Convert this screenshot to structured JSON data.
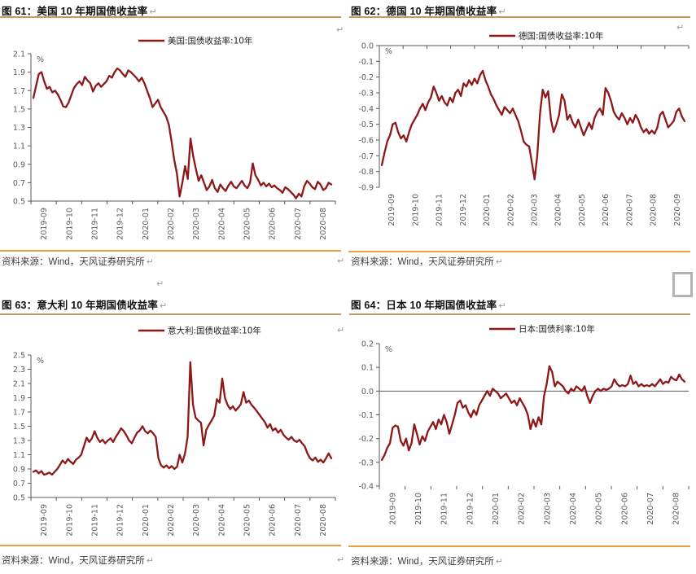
{
  "marks": {
    "pilcrow": "↵"
  },
  "colors": {
    "line": "#8e1717",
    "title_rule": "#c49a62",
    "source_rule": "#ec9f3f",
    "axis": "#595959",
    "legend_text": "#1f1f1f",
    "mark": "#9a9a9a"
  },
  "panels": [
    {
      "id": "us",
      "title": "图 61：美国 10 年期国债收益率",
      "legend": "美国:国债收益率:10年",
      "source": "资料来源：Wind，天风证券研究所"
    },
    {
      "id": "de",
      "title": "图 62：德国 10 年期国债收益率",
      "legend": "德国:国债收益率:10年",
      "source": "资料来源：Wind，天风证券研究所"
    },
    {
      "id": "it",
      "title": "图 63：意大利 10 年期国债收益率",
      "legend": "意大利:国债收益率:10年",
      "source": "资料来源：Wind，天风证券研究所"
    },
    {
      "id": "jp",
      "title": "图 64：日本 10 年期国债收益率",
      "legend": "日本:国债利率:10年",
      "source": "资料来源：Wind，天风证券研究所"
    }
  ],
  "chart_data": [
    {
      "type": "line",
      "title": "美国 10 年期国债收益率",
      "unit": "%",
      "ylim": [
        0.5,
        2.1
      ],
      "axis_style": "bottom",
      "legend_position": "top",
      "yticks": [
        {
          "v": 2.1,
          "t": "2.1"
        },
        {
          "v": 1.9,
          "t": "1.9"
        },
        {
          "v": 1.7,
          "t": "1.7"
        },
        {
          "v": 1.5,
          "t": "1.5"
        },
        {
          "v": 1.3,
          "t": "1.3"
        },
        {
          "v": 1.1,
          "t": "1.1"
        },
        {
          "v": 0.9,
          "t": "0.9"
        },
        {
          "v": 0.7,
          "t": "0.7"
        },
        {
          "v": 0.5,
          "t": "0.5"
        }
      ],
      "x_labels": [
        "2019-09",
        "2019-10",
        "2019-11",
        "2019-12",
        "2020-01",
        "2020-02",
        "2020-03",
        "2020-04",
        "2020-05",
        "2020-06",
        "2020-07",
        "2020-08"
      ],
      "series": [
        {
          "name": "美国:国债收益率:10年",
          "values": [
            1.62,
            1.75,
            1.88,
            1.9,
            1.8,
            1.72,
            1.74,
            1.68,
            1.7,
            1.66,
            1.6,
            1.53,
            1.52,
            1.57,
            1.65,
            1.73,
            1.77,
            1.8,
            1.76,
            1.85,
            1.81,
            1.78,
            1.69,
            1.75,
            1.78,
            1.74,
            1.77,
            1.8,
            1.86,
            1.84,
            1.9,
            1.94,
            1.92,
            1.88,
            1.85,
            1.92,
            1.9,
            1.87,
            1.84,
            1.8,
            1.84,
            1.78,
            1.7,
            1.62,
            1.52,
            1.56,
            1.6,
            1.52,
            1.47,
            1.42,
            1.33,
            1.15,
            0.95,
            0.8,
            0.55,
            0.7,
            0.88,
            0.74,
            1.18,
            0.99,
            0.85,
            0.72,
            0.78,
            0.7,
            0.62,
            0.66,
            0.73,
            0.64,
            0.6,
            0.68,
            0.64,
            0.61,
            0.67,
            0.71,
            0.66,
            0.64,
            0.68,
            0.72,
            0.67,
            0.64,
            0.7,
            0.91,
            0.78,
            0.73,
            0.67,
            0.7,
            0.66,
            0.69,
            0.65,
            0.67,
            0.64,
            0.62,
            0.59,
            0.65,
            0.63,
            0.6,
            0.57,
            0.53,
            0.58,
            0.55,
            0.66,
            0.72,
            0.69,
            0.65,
            0.63,
            0.71,
            0.68,
            0.62,
            0.64,
            0.7,
            0.68
          ]
        }
      ]
    },
    {
      "type": "line",
      "title": "德国 10 年期国债收益率",
      "unit": "%",
      "ylim": [
        -0.9,
        0.0
      ],
      "axis_style": "top",
      "legend_position": "top",
      "yticks": [
        {
          "v": 0.0,
          "t": "0.0"
        },
        {
          "v": -0.1,
          "t": "-0.1"
        },
        {
          "v": -0.2,
          "t": "-0.2"
        },
        {
          "v": -0.3,
          "t": "-0.3"
        },
        {
          "v": -0.4,
          "t": "-0.4"
        },
        {
          "v": -0.5,
          "t": "-0.5"
        },
        {
          "v": -0.6,
          "t": "-0.6"
        },
        {
          "v": -0.7,
          "t": "-0.7"
        },
        {
          "v": -0.8,
          "t": "-0.8"
        },
        {
          "v": -0.9,
          "t": "-0.9"
        }
      ],
      "x_labels": [
        "2019-09",
        "2019-10",
        "2019-11",
        "2019-12",
        "2020-01",
        "2020-02",
        "2020-03",
        "2020-04",
        "2020-05",
        "2020-06",
        "2020-07",
        "2020-08",
        "2020-09"
      ],
      "series": [
        {
          "name": "德国:国债收益率:10年",
          "values": [
            -0.76,
            -0.68,
            -0.61,
            -0.57,
            -0.5,
            -0.49,
            -0.55,
            -0.59,
            -0.57,
            -0.61,
            -0.55,
            -0.5,
            -0.47,
            -0.44,
            -0.4,
            -0.37,
            -0.41,
            -0.36,
            -0.33,
            -0.26,
            -0.3,
            -0.35,
            -0.32,
            -0.36,
            -0.38,
            -0.33,
            -0.36,
            -0.3,
            -0.28,
            -0.32,
            -0.24,
            -0.26,
            -0.22,
            -0.25,
            -0.21,
            -0.24,
            -0.19,
            -0.16,
            -0.22,
            -0.26,
            -0.31,
            -0.34,
            -0.38,
            -0.41,
            -0.44,
            -0.39,
            -0.41,
            -0.43,
            -0.4,
            -0.44,
            -0.48,
            -0.54,
            -0.61,
            -0.63,
            -0.64,
            -0.74,
            -0.85,
            -0.7,
            -0.43,
            -0.28,
            -0.33,
            -0.29,
            -0.47,
            -0.55,
            -0.5,
            -0.44,
            -0.31,
            -0.35,
            -0.47,
            -0.44,
            -0.49,
            -0.52,
            -0.47,
            -0.52,
            -0.57,
            -0.53,
            -0.49,
            -0.53,
            -0.46,
            -0.42,
            -0.4,
            -0.44,
            -0.27,
            -0.3,
            -0.35,
            -0.42,
            -0.45,
            -0.47,
            -0.43,
            -0.46,
            -0.5,
            -0.46,
            -0.49,
            -0.44,
            -0.47,
            -0.52,
            -0.55,
            -0.53,
            -0.56,
            -0.54,
            -0.56,
            -0.52,
            -0.44,
            -0.42,
            -0.47,
            -0.52,
            -0.5,
            -0.48,
            -0.42,
            -0.4,
            -0.45,
            -0.48
          ]
        }
      ]
    },
    {
      "type": "line",
      "title": "意大利 10 年期国债收益率",
      "unit": "%",
      "ylim": [
        0.5,
        2.5
      ],
      "axis_style": "bottom",
      "legend_position": "top",
      "yticks": [
        {
          "v": 2.5,
          "t": "2.5"
        },
        {
          "v": 2.3,
          "t": "2.3"
        },
        {
          "v": 2.1,
          "t": "2.1"
        },
        {
          "v": 1.9,
          "t": "1.9"
        },
        {
          "v": 1.7,
          "t": "1.7"
        },
        {
          "v": 1.5,
          "t": "1.5"
        },
        {
          "v": 1.3,
          "t": "1.3"
        },
        {
          "v": 1.1,
          "t": "1.1"
        },
        {
          "v": 0.9,
          "t": "0.9"
        },
        {
          "v": 0.7,
          "t": "0.7"
        },
        {
          "v": 0.5,
          "t": "0.5"
        }
      ],
      "x_labels": [
        "2019-09",
        "2019-10",
        "2019-11",
        "2019-12",
        "2020-01",
        "2020-02",
        "2020-03",
        "2020-04",
        "2020-05",
        "2020-06",
        "2020-07",
        "2020-08"
      ],
      "series": [
        {
          "name": "意大利:国债收益率:10年",
          "values": [
            0.86,
            0.88,
            0.84,
            0.87,
            0.82,
            0.83,
            0.85,
            0.82,
            0.86,
            0.9,
            0.96,
            1.02,
            0.98,
            1.04,
            1.0,
            0.97,
            1.03,
            1.06,
            1.1,
            1.22,
            1.34,
            1.28,
            1.33,
            1.43,
            1.34,
            1.28,
            1.31,
            1.26,
            1.3,
            1.33,
            1.28,
            1.35,
            1.41,
            1.47,
            1.43,
            1.37,
            1.3,
            1.26,
            1.34,
            1.41,
            1.44,
            1.5,
            1.43,
            1.4,
            1.44,
            1.4,
            1.35,
            1.05,
            0.95,
            0.92,
            0.95,
            0.91,
            0.94,
            0.9,
            0.93,
            1.1,
            0.99,
            1.12,
            1.35,
            2.4,
            1.8,
            1.62,
            1.58,
            1.55,
            1.23,
            1.45,
            1.52,
            1.58,
            1.65,
            1.88,
            1.83,
            2.17,
            1.9,
            1.8,
            1.74,
            1.78,
            1.72,
            1.76,
            1.81,
            1.98,
            1.83,
            1.86,
            1.8,
            1.76,
            1.71,
            1.66,
            1.61,
            1.56,
            1.48,
            1.53,
            1.44,
            1.47,
            1.41,
            1.45,
            1.38,
            1.34,
            1.31,
            1.35,
            1.3,
            1.28,
            1.31,
            1.26,
            1.22,
            1.12,
            1.05,
            1.02,
            1.06,
            1.0,
            1.03,
            0.99,
            1.05,
            1.12,
            1.05
          ]
        }
      ]
    },
    {
      "type": "line",
      "title": "日本 10 年期国债收益率",
      "unit": "%",
      "ylim": [
        -0.4,
        0.2
      ],
      "axis_style": "zero",
      "legend_position": "top",
      "yticks": [
        {
          "v": 0.2,
          "t": "0.2"
        },
        {
          "v": 0.1,
          "t": "0.1"
        },
        {
          "v": 0.0,
          "t": "0.0"
        },
        {
          "v": -0.1,
          "t": "-0.1"
        },
        {
          "v": -0.2,
          "t": "-0.2"
        },
        {
          "v": -0.3,
          "t": "-0.3"
        },
        {
          "v": -0.4,
          "t": "-0.4"
        }
      ],
      "x_labels": [
        "2019-09",
        "2019-10",
        "2019-11",
        "2019-12",
        "2020-01",
        "2020-02",
        "2020-03",
        "2020-04",
        "2020-05",
        "2020-06",
        "2020-07",
        "2020-08"
      ],
      "series": [
        {
          "name": "日本:国债利率:10年",
          "values": [
            -0.29,
            -0.27,
            -0.24,
            -0.22,
            -0.155,
            -0.145,
            -0.15,
            -0.21,
            -0.23,
            -0.2,
            -0.25,
            -0.22,
            -0.14,
            -0.18,
            -0.225,
            -0.19,
            -0.21,
            -0.17,
            -0.15,
            -0.13,
            -0.16,
            -0.12,
            -0.14,
            -0.1,
            -0.13,
            -0.18,
            -0.14,
            -0.1,
            -0.05,
            -0.04,
            -0.07,
            -0.06,
            -0.09,
            -0.11,
            -0.08,
            -0.1,
            -0.06,
            -0.04,
            -0.02,
            0.0,
            -0.02,
            0.01,
            0.0,
            -0.01,
            -0.03,
            -0.02,
            -0.01,
            -0.03,
            -0.05,
            -0.04,
            -0.06,
            -0.03,
            -0.05,
            -0.07,
            -0.1,
            -0.16,
            -0.12,
            -0.15,
            -0.11,
            -0.14,
            -0.02,
            0.03,
            0.105,
            0.08,
            0.02,
            0.04,
            0.03,
            0.02,
            0.0,
            -0.01,
            0.01,
            0.0,
            0.02,
            0.01,
            0.0,
            0.02,
            -0.02,
            -0.05,
            -0.02,
            0.0,
            0.01,
            0.0,
            0.01,
            0.005,
            0.01,
            0.02,
            0.05,
            0.03,
            0.02,
            0.025,
            0.02,
            0.03,
            0.065,
            0.03,
            0.04,
            0.02,
            0.03,
            0.02,
            0.025,
            0.02,
            0.03,
            0.02,
            0.035,
            0.05,
            0.03,
            0.04,
            0.035,
            0.06,
            0.05,
            0.045,
            0.07,
            0.05,
            0.04
          ]
        }
      ]
    }
  ]
}
